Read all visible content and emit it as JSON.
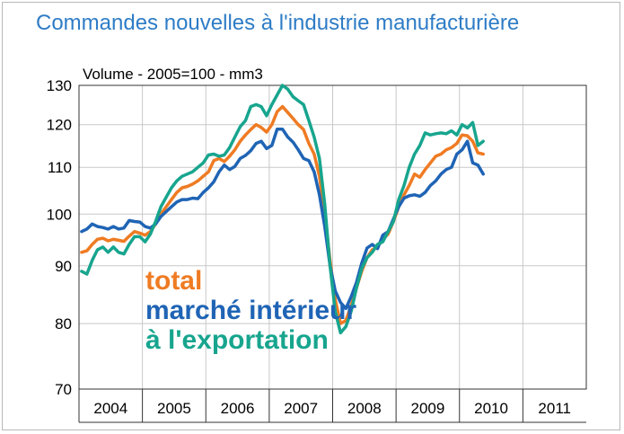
{
  "title": "Commandes nouvelles à l'industrie manufacturière",
  "chart_data": {
    "type": "line",
    "subtitle": "Volume - 2005=100 - mm3",
    "y_scale": "log",
    "ylim": [
      70,
      130
    ],
    "y_ticks": [
      "130",
      "120",
      "110",
      "100",
      "90",
      "80",
      "70"
    ],
    "year_labels": [
      "2004",
      "2005",
      "2006",
      "2007",
      "2008",
      "2009",
      "2010",
      "2011"
    ],
    "grid": true,
    "x_start": "2004-01",
    "series": [
      {
        "name": "total",
        "color": "#ef7b23",
        "values": [
          92.5,
          92.8,
          94,
          95,
          95.2,
          94.7,
          95,
          94.8,
          94.6,
          95.6,
          96.5,
          96.2,
          95.8,
          96.5,
          98,
          100,
          101.5,
          103,
          104.5,
          105.5,
          105.8,
          106.3,
          107,
          108,
          109,
          111.5,
          112,
          111.3,
          112.5,
          114,
          116,
          117.5,
          118.8,
          120,
          119.3,
          118.2,
          120,
          123.2,
          124.5,
          123,
          121.5,
          120,
          118.8,
          115.5,
          113,
          108,
          100,
          91,
          84,
          80,
          80.5,
          83,
          86,
          89,
          91.5,
          93,
          93.5,
          95,
          96,
          98.5,
          101.5,
          104,
          106,
          108.5,
          107.8,
          109.5,
          111,
          112.5,
          113,
          114,
          114.5,
          115.5,
          117.5,
          117.3,
          116,
          113.3,
          113
        ]
      },
      {
        "name": "marché intérieur",
        "color": "#1f64b5",
        "values": [
          96.5,
          97,
          98,
          97.5,
          97.3,
          97,
          97.5,
          97,
          97.2,
          98.7,
          98.5,
          98.4,
          97.5,
          97.2,
          98,
          99.5,
          100.5,
          101.5,
          102.5,
          103,
          103,
          103.3,
          103.2,
          104.5,
          105.5,
          106.8,
          109,
          110.5,
          109.5,
          110.2,
          112,
          112.7,
          113.8,
          115.5,
          116,
          114.3,
          115,
          118.9,
          118.9,
          117,
          115.8,
          114,
          112,
          111.5,
          109,
          104,
          97.5,
          90,
          85.5,
          83.5,
          82.5,
          84.5,
          87,
          90.5,
          93.3,
          94,
          93.2,
          95.8,
          96.5,
          99,
          101.5,
          103.3,
          103.8,
          104,
          103.7,
          104.5,
          106,
          107,
          108.5,
          109.5,
          110,
          113,
          114,
          116,
          111,
          110.5,
          108.5
        ]
      },
      {
        "name": "à l'exportation",
        "color": "#17a58e",
        "values": [
          89,
          88.5,
          91,
          93,
          93.5,
          92.5,
          93.5,
          92.5,
          92.2,
          94,
          95.5,
          95.5,
          94.5,
          96,
          98.5,
          101.5,
          103.5,
          105.5,
          107,
          108,
          108.5,
          109,
          110,
          111,
          112.8,
          113,
          112.5,
          112.8,
          114.5,
          117,
          119.5,
          121,
          124.5,
          125,
          124.5,
          122.2,
          125,
          127.5,
          130,
          129,
          127,
          126,
          125,
          121,
          117,
          112,
          102,
          90,
          82,
          78.5,
          79.5,
          82,
          86,
          89.5,
          91.5,
          92.5,
          94,
          94.5,
          96.5,
          98.5,
          103,
          106,
          110,
          113,
          115,
          118,
          117.5,
          117.8,
          118,
          117.8,
          118.5,
          117.5,
          120,
          119.2,
          120.5,
          115,
          116
        ]
      }
    ]
  }
}
